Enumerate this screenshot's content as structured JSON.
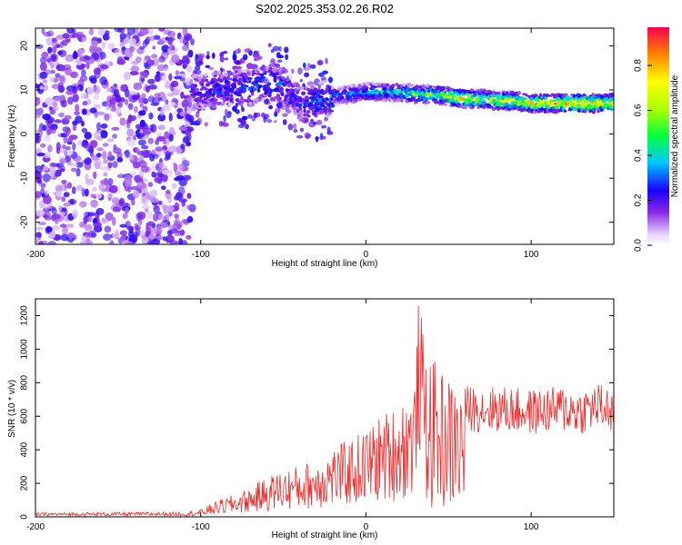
{
  "title": "S202.2025.353.02.26.R02",
  "chart_data": [
    {
      "type": "heatmap",
      "title": "S202.2025.353.02.26.R02",
      "xlabel": "Height of straight line (km)",
      "ylabel": "Frequency (Hz)",
      "xlim": [
        -200,
        150
      ],
      "ylim": [
        -25,
        24
      ],
      "xticks": [
        -200,
        -100,
        0,
        100
      ],
      "yticks": [
        -20,
        -10,
        0,
        10,
        20
      ],
      "colorbar": {
        "label": "Normalized spectral amplitude",
        "range": [
          0,
          0.97
        ],
        "ticks": [
          0.0,
          0.2,
          0.4,
          0.6,
          0.8
        ]
      },
      "ridge": {
        "x": [
          -100,
          -90,
          -80,
          -70,
          -60,
          -50,
          -40,
          -30,
          -20,
          -10,
          0,
          10,
          20,
          30,
          40,
          50,
          60,
          70,
          80,
          90,
          100,
          110,
          120,
          130,
          140,
          150
        ],
        "freq": [
          9.5,
          10,
          10.5,
          10.5,
          12,
          11,
          7,
          7.5,
          8.5,
          9,
          9.5,
          9.5,
          9.5,
          9,
          9,
          8.5,
          8,
          8,
          7.5,
          7.5,
          7,
          7,
          7,
          7,
          7,
          7
        ],
        "amplitude": [
          0.2,
          0.22,
          0.25,
          0.25,
          0.3,
          0.25,
          0.2,
          0.3,
          0.35,
          0.4,
          0.45,
          0.45,
          0.5,
          0.6,
          0.65,
          0.7,
          0.85,
          0.7,
          0.75,
          0.8,
          0.85,
          0.9,
          0.92,
          0.9,
          0.88,
          0.8
        ]
      },
      "noise_region": {
        "x": [
          -200,
          -105
        ],
        "freq": [
          -25,
          24
        ],
        "amplitude": [
          0.05,
          0.25
        ]
      }
    },
    {
      "type": "line",
      "xlabel": "Height of straight line (km)",
      "ylabel": "SNR (10 * v/v)",
      "xlim": [
        -200,
        150
      ],
      "ylim": [
        0,
        1300
      ],
      "xticks": [
        -200,
        -100,
        0,
        100
      ],
      "yticks": [
        0,
        200,
        400,
        600,
        800,
        1000,
        1200
      ],
      "series": [
        {
          "name": "SNR",
          "color": "#ee2a2a",
          "envelope_x": [
            -200,
            -110,
            -100,
            -90,
            -80,
            -70,
            -60,
            -50,
            -40,
            -30,
            -20,
            -10,
            0,
            10,
            20,
            30,
            32,
            35,
            40,
            50,
            60,
            80,
            100,
            120,
            130,
            140,
            145,
            150
          ],
          "envelope_y": [
            20,
            25,
            40,
            90,
            120,
            160,
            220,
            260,
            280,
            320,
            380,
            420,
            480,
            560,
            620,
            760,
            1300,
            1000,
            860,
            760,
            700,
            700,
            680,
            700,
            680,
            720,
            700,
            680
          ]
        }
      ]
    }
  ]
}
